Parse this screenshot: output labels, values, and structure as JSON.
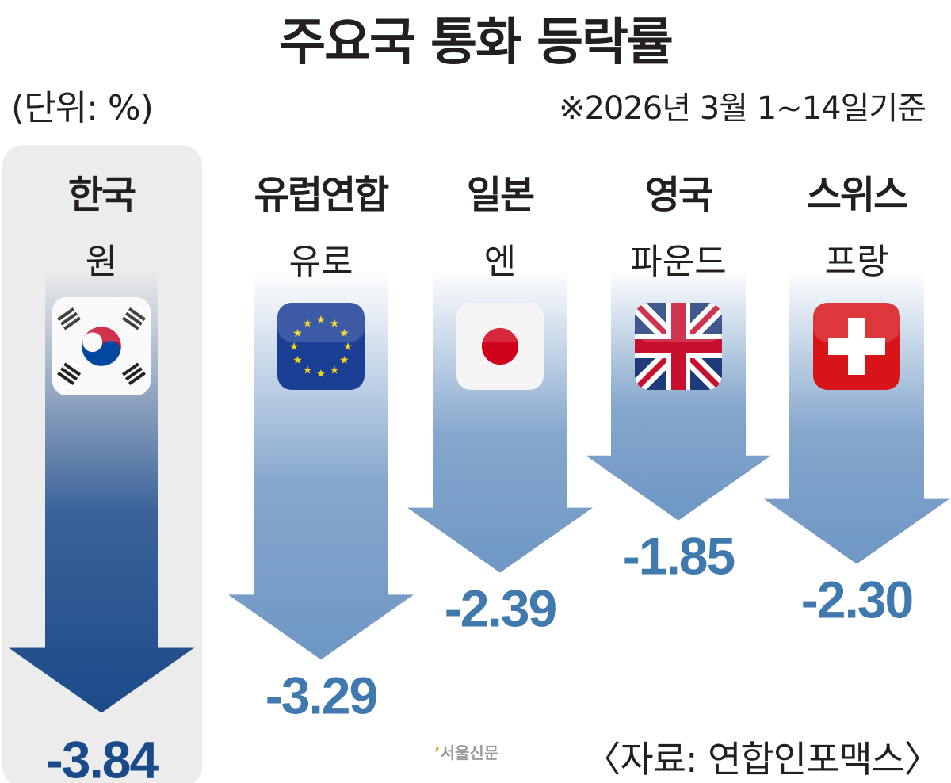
{
  "title": "주요국 통화 등락률",
  "unit": "(단위: %)",
  "basis": "※2026년 3월 1~14일기준",
  "source": "〈자료: 연합인포맥스〉",
  "logo": "서울신문",
  "colors": {
    "highlight": "#1b4a8a",
    "normal": "#6f97c4",
    "value_highlight": "#1b4a8a",
    "value_normal": "#3f79ae",
    "highlight_bg": "#ececec"
  },
  "chart_data": {
    "type": "bar",
    "title": "주요국 통화 등락률",
    "unit": "%",
    "categories": [
      "한국",
      "유럽연합",
      "일본",
      "영국",
      "스위스"
    ],
    "currencies": [
      "원",
      "유로",
      "엔",
      "파운드",
      "프랑"
    ],
    "flags": [
      "korea-flag",
      "eu-flag",
      "japan-flag",
      "uk-flag",
      "swiss-flag"
    ],
    "values": [
      -3.84,
      -3.29,
      -2.39,
      -1.85,
      -2.3
    ],
    "labels": [
      "-3.84",
      "-3.29",
      "-2.39",
      "-1.85",
      "-2.30"
    ],
    "highlight": "한국"
  }
}
